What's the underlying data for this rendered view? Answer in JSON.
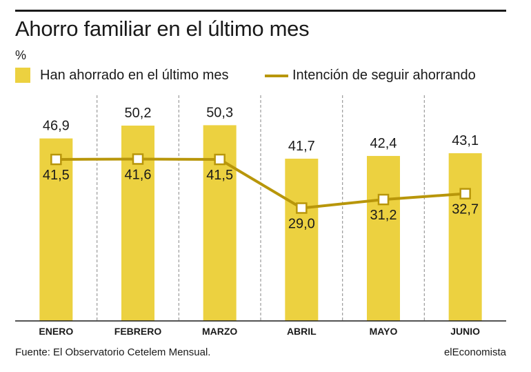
{
  "title": "Ahorro familiar en el último mes",
  "unit": "%",
  "legend": {
    "bars": "Han ahorrado en el último mes",
    "line": "Intención de seguir ahorrando"
  },
  "colors": {
    "bar": "#ecd140",
    "line": "#b8960a",
    "grid": "#9a9a9a"
  },
  "footer": {
    "source": "Fuente: El Observatorio Cetelem Mensual.",
    "brand": "elEconomista"
  },
  "chart_data": {
    "type": "bar",
    "categories": [
      "ENERO",
      "FEBRERO",
      "MARZO",
      "ABRIL",
      "MAYO",
      "JUNIO"
    ],
    "series": [
      {
        "name": "Han ahorrado en el último mes",
        "type": "bar",
        "values": [
          46.9,
          50.2,
          50.3,
          41.7,
          42.4,
          43.1
        ],
        "labels": [
          "46,9",
          "50,2",
          "50,3",
          "41,7",
          "42,4",
          "43,1"
        ]
      },
      {
        "name": "Intención de seguir ahorrando",
        "type": "line",
        "values": [
          41.5,
          41.6,
          41.5,
          29.0,
          31.2,
          32.7
        ],
        "labels": [
          "41,5",
          "41,6",
          "41,5",
          "29,0",
          "31,2",
          "32,7"
        ]
      }
    ],
    "ylim": [
      0,
      58
    ],
    "grid": "vertical dashed separators between categories",
    "legend_position": "top-left"
  }
}
